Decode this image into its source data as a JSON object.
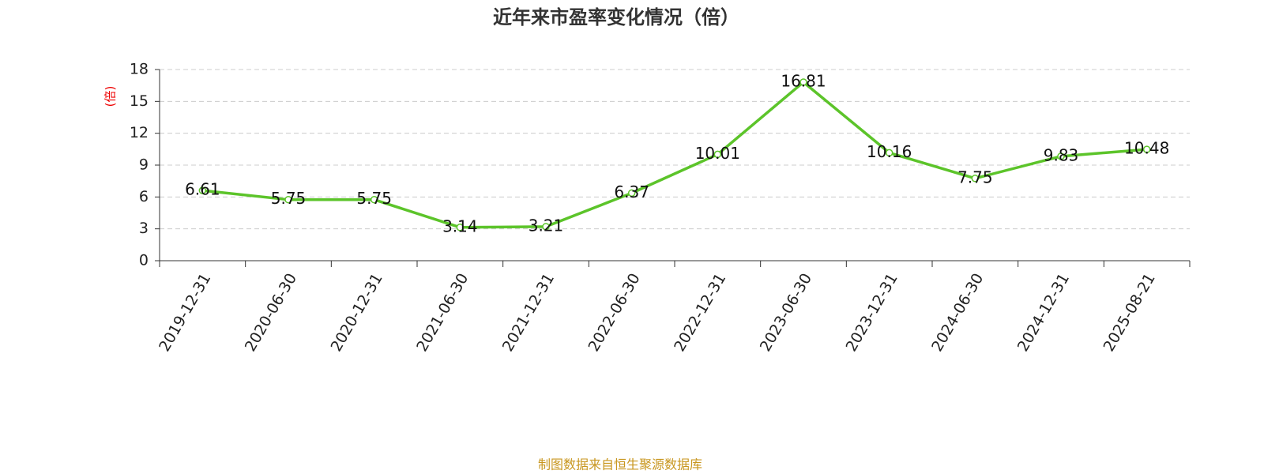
{
  "chart_data": {
    "type": "line",
    "title": "近年来市盈率变化情况（倍）",
    "y_label": "(倍)",
    "source": "制图数据来自恒生聚源数据库",
    "categories": [
      "2019-12-31",
      "2020-06-30",
      "2020-12-31",
      "2021-06-30",
      "2021-12-31",
      "2022-06-30",
      "2022-12-31",
      "2023-06-30",
      "2023-12-31",
      "2024-06-30",
      "2024-12-31",
      "2025-08-21"
    ],
    "series": [
      {
        "name": "市盈率",
        "color": "#5cc42a",
        "values": [
          6.61,
          5.75,
          5.75,
          3.14,
          3.21,
          6.37,
          10.01,
          16.81,
          10.16,
          7.75,
          9.83,
          10.48
        ]
      }
    ],
    "ylim": [
      0,
      18
    ],
    "yticks": [
      0,
      3,
      6,
      9,
      12,
      15,
      18
    ],
    "grid": true
  }
}
